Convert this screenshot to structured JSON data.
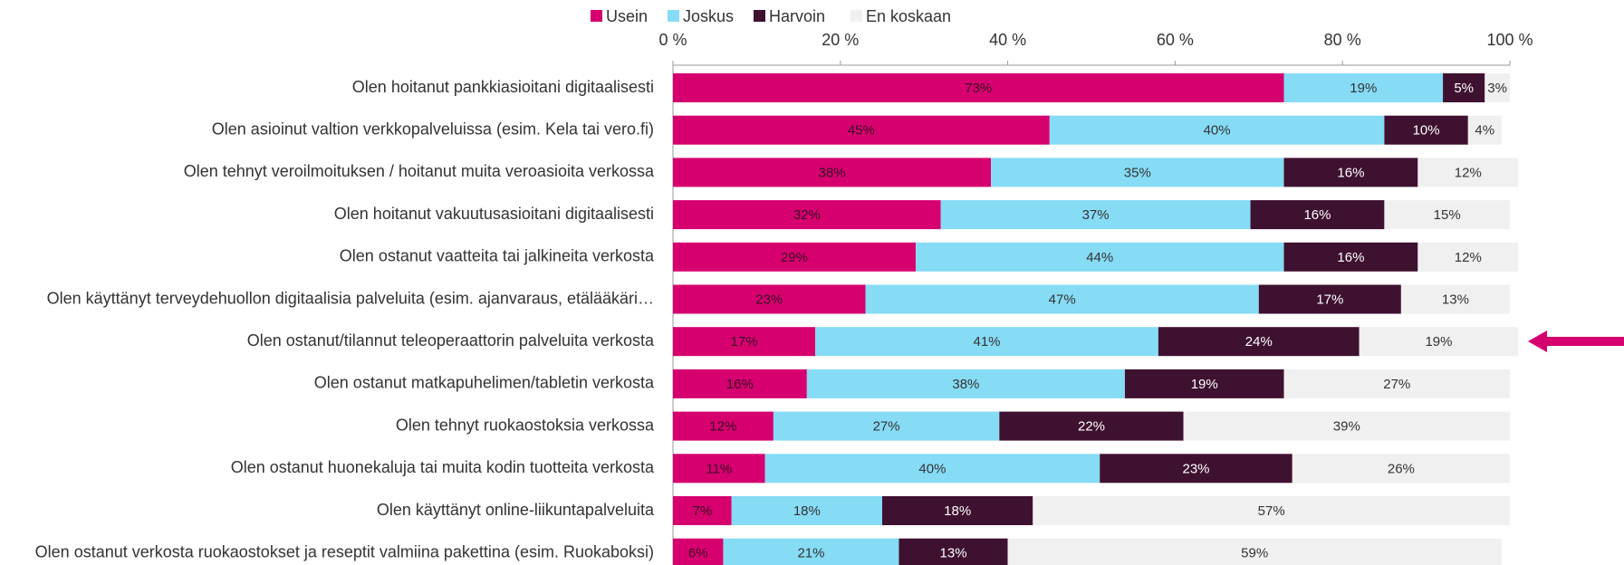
{
  "chart_data": {
    "type": "stacked-bar-horizontal",
    "categories": [
      "Olen hoitanut pankkiasioitani digitaalisesti",
      "Olen asioinut valtion verkkopalveluissa (esim. Kela tai vero.fi)",
      "Olen tehnyt veroilmoituksen / hoitanut muita veroasioita verkossa",
      "Olen hoitanut vakuutusasioitani digitaalisesti",
      "Olen ostanut vaatteita tai jalkineita verkosta",
      "Olen käyttänyt terveydehuollon digitaalisia palveluita (esim. ajanvaraus, etälääkäri…",
      "Olen ostanut/tilannut teleoperaattorin palveluita verkosta",
      "Olen ostanut matkapuhelimen/tabletin verkosta",
      "Olen tehnyt ruokaostoksia verkossa",
      "Olen ostanut huonekaluja tai muita kodin tuotteita verkosta",
      "Olen käyttänyt online-liikuntapalveluita",
      "Olen ostanut verkosta ruokaostokset ja reseptit valmiina pakettina (esim. Ruokaboksi)"
    ],
    "series": [
      {
        "name": "Usein",
        "color": "#d6006f",
        "values": [
          73,
          45,
          38,
          32,
          29,
          23,
          17,
          16,
          12,
          11,
          7,
          6
        ],
        "value_labels": [
          "73%",
          "45%",
          "38%",
          "32%",
          "29%",
          "23%",
          "17%",
          "16%",
          "12%",
          "11%",
          "7%",
          "6%"
        ]
      },
      {
        "name": "Joskus",
        "color": "#86dbf5",
        "values": [
          19,
          40,
          35,
          37,
          44,
          47,
          41,
          38,
          27,
          40,
          18,
          21
        ],
        "value_labels": [
          "19%",
          "40%",
          "35%",
          "37%",
          "44%",
          "47%",
          "41%",
          "38%",
          "27%",
          "40%",
          "18%",
          "21%"
        ]
      },
      {
        "name": "Harvoin",
        "color": "#3f1130",
        "values": [
          5,
          10,
          16,
          16,
          16,
          17,
          24,
          19,
          22,
          23,
          18,
          13
        ],
        "value_labels": [
          "5%",
          "10%",
          "16%",
          "16%",
          "16%",
          "17%",
          "24%",
          "19%",
          "22%",
          "23%",
          "18%",
          "13%"
        ]
      },
      {
        "name": "En koskaan",
        "color": "#f0f0f0",
        "values": [
          3,
          4,
          12,
          15,
          12,
          13,
          19,
          27,
          39,
          26,
          57,
          59
        ],
        "value_labels": [
          "3%",
          "4%",
          "12%",
          "15%",
          "12%",
          "13%",
          "19%",
          "27%",
          "39%",
          "26%",
          "57%",
          "59%"
        ]
      }
    ],
    "xlim": [
      0,
      100
    ],
    "xticks": [
      {
        "value": 0,
        "label": "0 %"
      },
      {
        "value": 20,
        "label": "20 %"
      },
      {
        "value": 40,
        "label": "40 %"
      },
      {
        "value": 60,
        "label": "60 %"
      },
      {
        "value": 80,
        "label": "80 %"
      },
      {
        "value": 100,
        "label": "100 %"
      }
    ],
    "legend": "top"
  }
}
